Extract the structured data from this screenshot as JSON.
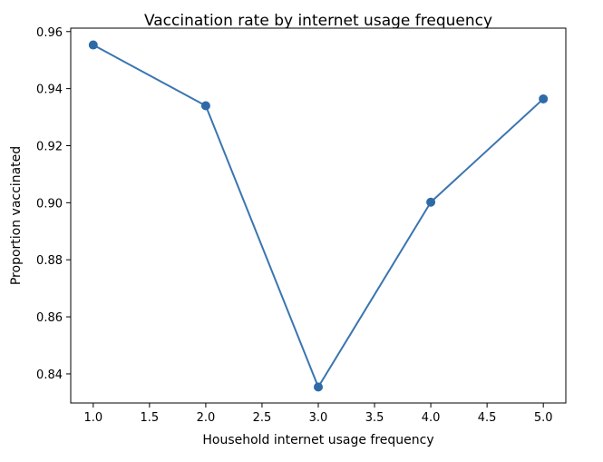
{
  "chart_data": {
    "type": "line",
    "title": "Vaccination rate by internet usage frequency",
    "xlabel": "Household internet usage frequency",
    "ylabel": "Proportion vaccinated",
    "x": [
      1.0,
      2.0,
      3.0,
      4.0,
      5.0
    ],
    "series": [
      {
        "values": [
          0.9553,
          0.934,
          0.8354,
          0.9002,
          0.9364
        ]
      }
    ],
    "xlim": [
      0.8,
      5.2
    ],
    "ylim": [
      0.8298,
      0.9612
    ],
    "xticks": [
      "1.0",
      "1.5",
      "2.0",
      "2.5",
      "3.0",
      "3.5",
      "4.0",
      "4.5",
      "5.0"
    ],
    "yticks": [
      "0.84",
      "0.86",
      "0.88",
      "0.90",
      "0.92",
      "0.94",
      "0.96"
    ],
    "grid": false,
    "marker": "circle",
    "line_color": "#3a75b0",
    "marker_color": "#2e6aa8"
  }
}
